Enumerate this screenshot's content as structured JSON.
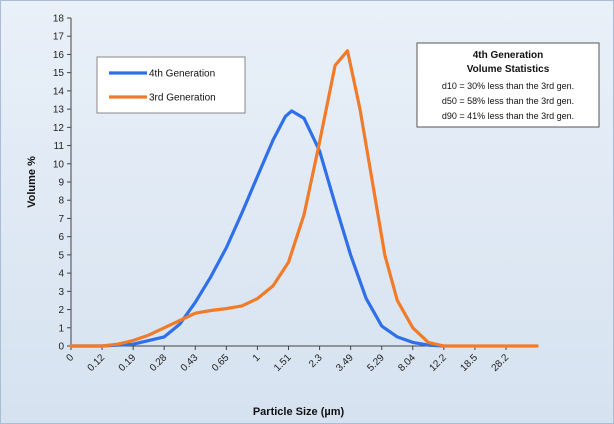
{
  "chart_data": {
    "type": "line",
    "xlabel": "Particle Size (µm)",
    "ylabel": "Volume %",
    "ylim": [
      0,
      18
    ],
    "yticks": [
      0,
      1,
      2,
      3,
      4,
      5,
      6,
      7,
      8,
      9,
      10,
      11,
      12,
      13,
      14,
      15,
      16,
      17,
      18
    ],
    "x_ticklabels": [
      "0",
      "0.12",
      "0.19",
      "0.28",
      "0.43",
      "0.65",
      "1",
      "1.51",
      "2.3",
      "3.49",
      "5.29",
      "8.04",
      "12.2",
      "18.5",
      "28.2"
    ],
    "grid": false,
    "legend_position": "top-left",
    "series": [
      {
        "name": "4th Generation",
        "color": "#2f6fe8",
        "points": [
          [
            0,
            0
          ],
          [
            1,
            0
          ],
          [
            2,
            0.1
          ],
          [
            3,
            0.5
          ],
          [
            3.5,
            1.2
          ],
          [
            4,
            2.4
          ],
          [
            4.5,
            3.8
          ],
          [
            5,
            5.4
          ],
          [
            5.5,
            7.3
          ],
          [
            6,
            9.3
          ],
          [
            6.5,
            11.3
          ],
          [
            6.9,
            12.6
          ],
          [
            7.1,
            12.9
          ],
          [
            7.5,
            12.5
          ],
          [
            8,
            10.7
          ],
          [
            8.5,
            7.8
          ],
          [
            9,
            5.0
          ],
          [
            9.5,
            2.6
          ],
          [
            10,
            1.1
          ],
          [
            10.5,
            0.5
          ],
          [
            11,
            0.2
          ],
          [
            11.5,
            0.05
          ],
          [
            12,
            0
          ]
        ]
      },
      {
        "name": "3rd Generation",
        "color": "#f07c2a",
        "points": [
          [
            0,
            0
          ],
          [
            1,
            0
          ],
          [
            1.5,
            0.1
          ],
          [
            2,
            0.3
          ],
          [
            2.5,
            0.6
          ],
          [
            3,
            1.0
          ],
          [
            3.5,
            1.4
          ],
          [
            4,
            1.8
          ],
          [
            4.5,
            1.95
          ],
          [
            5,
            2.05
          ],
          [
            5.5,
            2.2
          ],
          [
            6,
            2.6
          ],
          [
            6.5,
            3.3
          ],
          [
            7,
            4.6
          ],
          [
            7.5,
            7.2
          ],
          [
            8,
            11.2
          ],
          [
            8.5,
            15.4
          ],
          [
            8.9,
            16.2
          ],
          [
            9.3,
            13.0
          ],
          [
            9.7,
            9.0
          ],
          [
            10.1,
            5.0
          ],
          [
            10.5,
            2.5
          ],
          [
            11,
            1.0
          ],
          [
            11.5,
            0.2
          ],
          [
            12,
            0
          ],
          [
            15,
            0
          ]
        ]
      }
    ],
    "annotation": {
      "title_line1": "4th Generation",
      "title_line2": "Volume Statistics",
      "lines": [
        "d10 = 30% less than the 3rd gen.",
        "d50 = 58% less than the 3rd gen.",
        "d90 = 41% less than the 3rd gen."
      ]
    }
  }
}
